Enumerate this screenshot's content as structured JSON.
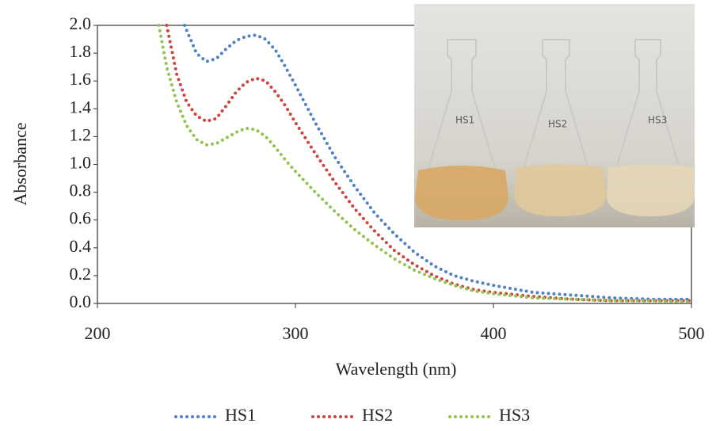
{
  "chart_data": {
    "type": "line",
    "x_label": "Wavelength  (nm)",
    "y_label": "Absorbance",
    "xlim": [
      200,
      500
    ],
    "xticks": [
      200,
      300,
      400,
      500
    ],
    "ylim": [
      0,
      2
    ],
    "yticks": [
      {
        "value": 0,
        "label": "0.0"
      },
      0.2,
      0.4,
      0.6,
      0.8,
      {
        "value": 1,
        "label": "1.0"
      },
      1.2,
      1.4,
      1.6,
      1.8,
      {
        "value": 2,
        "label": "2.0"
      }
    ],
    "legend": "bottom",
    "inset_labels": [
      "HS1",
      "HS2",
      "HS3"
    ],
    "series": [
      {
        "name": "HS1",
        "color": "#4f81c7",
        "x": [
          244,
          250,
          255,
          260,
          265,
          270,
          275,
          280,
          285,
          290,
          295,
          300,
          310,
          320,
          330,
          340,
          350,
          360,
          370,
          380,
          390,
          400,
          420,
          440,
          460,
          480,
          500
        ],
        "values": [
          2.0,
          1.8,
          1.74,
          1.76,
          1.83,
          1.89,
          1.92,
          1.93,
          1.9,
          1.82,
          1.7,
          1.57,
          1.3,
          1.05,
          0.84,
          0.65,
          0.5,
          0.37,
          0.27,
          0.2,
          0.16,
          0.13,
          0.08,
          0.06,
          0.04,
          0.03,
          0.03
        ]
      },
      {
        "name": "HS2",
        "color": "#d0433c",
        "x": [
          235,
          240,
          245,
          250,
          255,
          260,
          265,
          270,
          275,
          280,
          285,
          290,
          295,
          300,
          310,
          320,
          330,
          340,
          350,
          360,
          370,
          380,
          390,
          400,
          420,
          440,
          460,
          480,
          500
        ],
        "values": [
          2.0,
          1.65,
          1.45,
          1.35,
          1.31,
          1.33,
          1.42,
          1.52,
          1.59,
          1.62,
          1.6,
          1.52,
          1.42,
          1.3,
          1.08,
          0.87,
          0.68,
          0.52,
          0.38,
          0.28,
          0.2,
          0.14,
          0.1,
          0.08,
          0.05,
          0.03,
          0.02,
          0.02,
          0.02
        ]
      },
      {
        "name": "HS3",
        "color": "#92c24f",
        "x": [
          231,
          235,
          240,
          245,
          250,
          255,
          260,
          265,
          270,
          275,
          280,
          285,
          290,
          295,
          300,
          310,
          320,
          330,
          340,
          350,
          360,
          370,
          380,
          390,
          400,
          420,
          440,
          460,
          480,
          500
        ],
        "values": [
          2.0,
          1.7,
          1.45,
          1.28,
          1.18,
          1.14,
          1.15,
          1.19,
          1.23,
          1.26,
          1.25,
          1.2,
          1.12,
          1.03,
          0.95,
          0.8,
          0.66,
          0.53,
          0.42,
          0.32,
          0.24,
          0.18,
          0.13,
          0.09,
          0.07,
          0.04,
          0.03,
          0.02,
          0.02,
          0.01
        ]
      }
    ]
  }
}
